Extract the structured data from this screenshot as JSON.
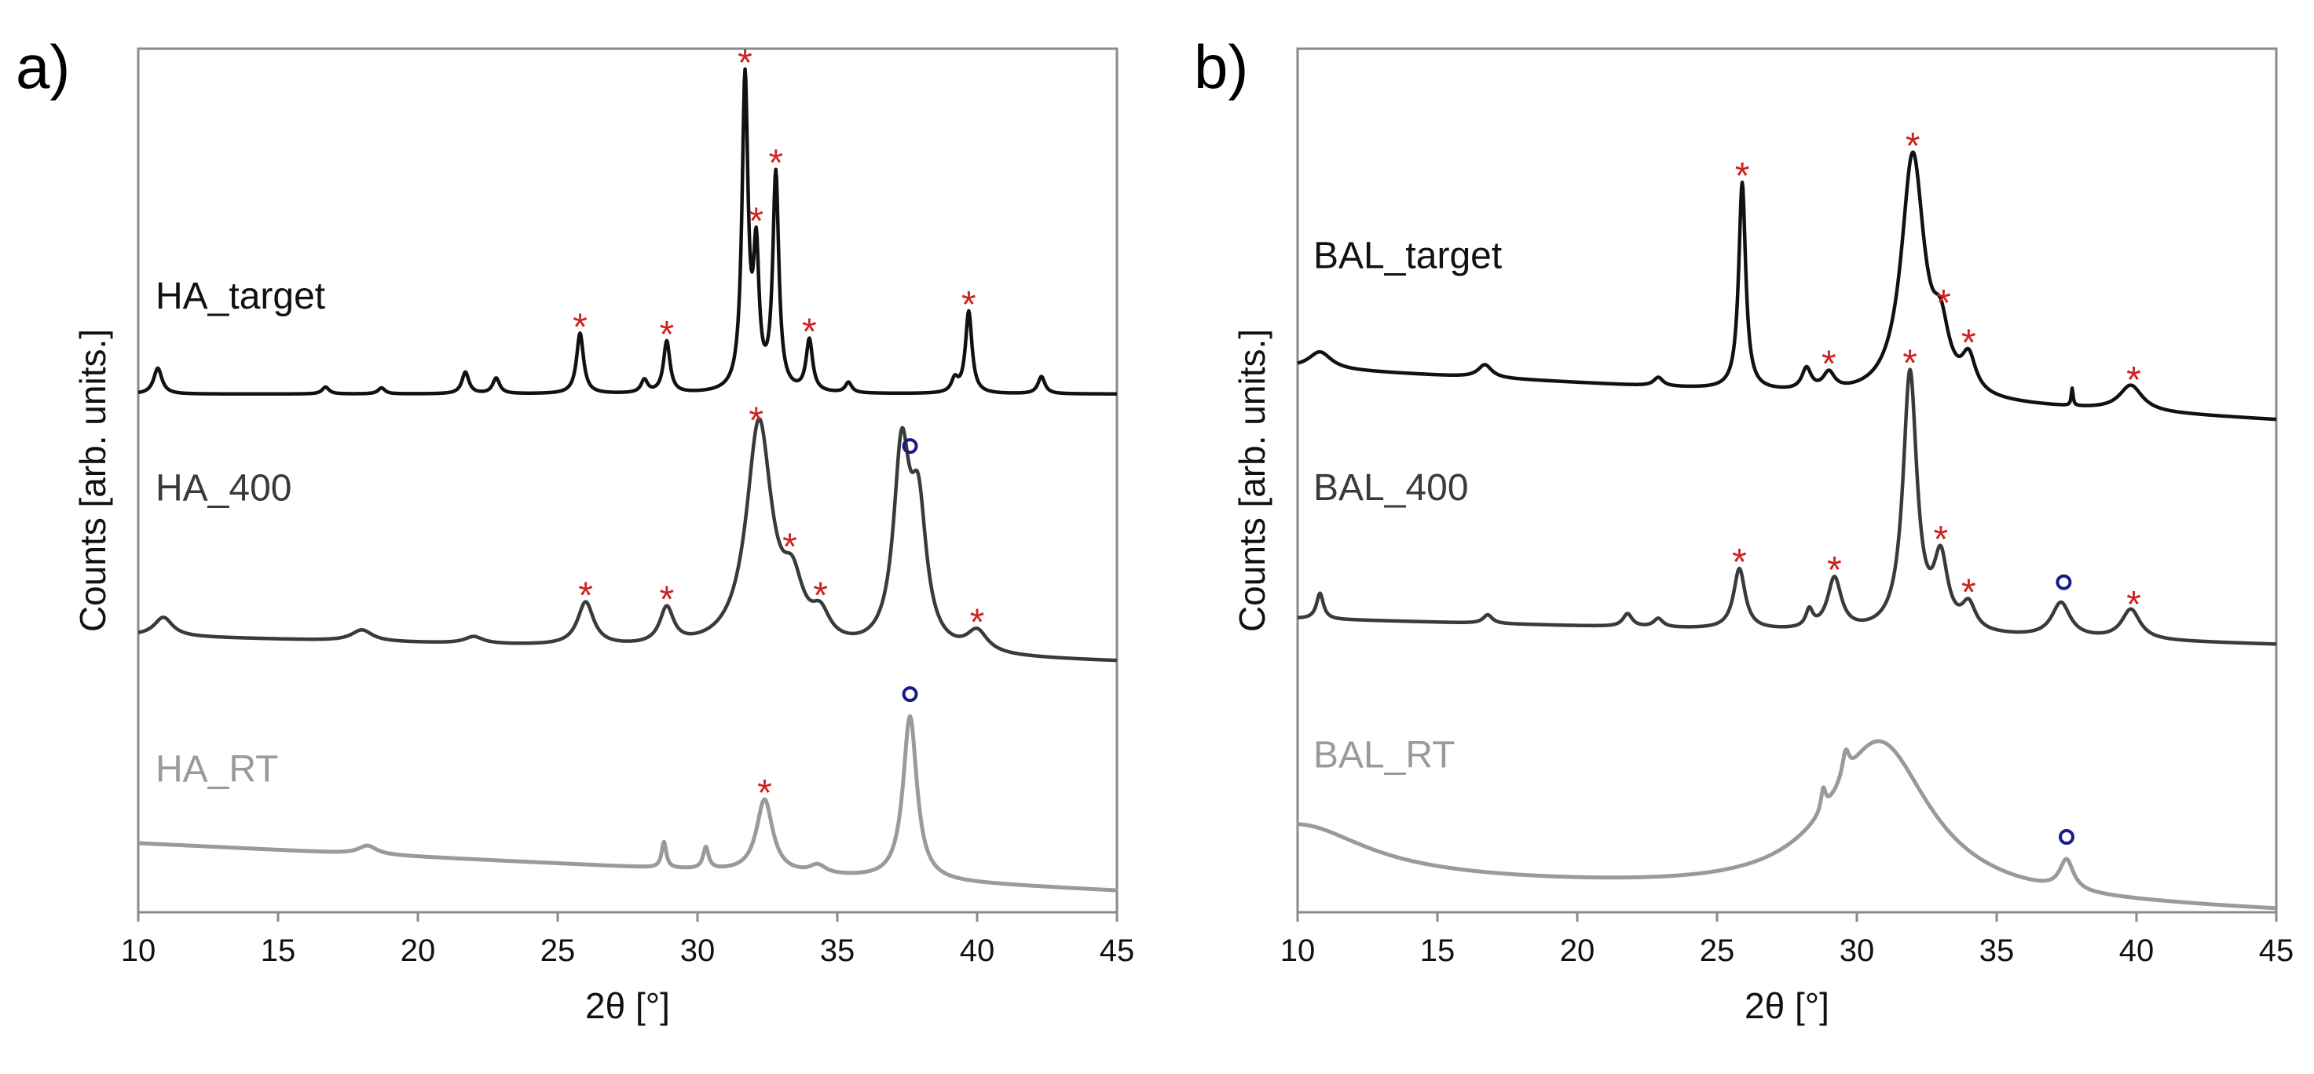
{
  "chart_data": [
    {
      "type": "line",
      "panel_label": "a)",
      "xlabel": "2θ [°]",
      "ylabel": "Counts [arb. units.]",
      "xlim": [
        10,
        45
      ],
      "xticks": [
        10,
        15,
        20,
        25,
        30,
        35,
        40,
        45
      ],
      "y_ticks_shown": false,
      "series": [
        {
          "name": "HA_target",
          "label": "HA_target",
          "color": "#111111",
          "offset": 0.6,
          "baseline_slope": 0.0,
          "peaks": [
            [
              10.7,
              0.03,
              0.18
            ],
            [
              16.7,
              0.008,
              0.15
            ],
            [
              18.7,
              0.007,
              0.15
            ],
            [
              21.7,
              0.025,
              0.15
            ],
            [
              22.8,
              0.018,
              0.15
            ],
            [
              25.8,
              0.07,
              0.15
            ],
            [
              28.1,
              0.015,
              0.14
            ],
            [
              28.9,
              0.06,
              0.14
            ],
            [
              31.7,
              0.36,
              0.13
            ],
            [
              32.1,
              0.15,
              0.12
            ],
            [
              32.8,
              0.25,
              0.13
            ],
            [
              34.0,
              0.06,
              0.14
            ],
            [
              35.4,
              0.012,
              0.14
            ],
            [
              39.2,
              0.015,
              0.14
            ],
            [
              39.7,
              0.095,
              0.14
            ],
            [
              42.3,
              0.02,
              0.15
            ]
          ],
          "star_markers": [
            {
              "x": 31.7,
              "symbol": "*"
            },
            {
              "x": 32.1,
              "symbol": "*"
            },
            {
              "x": 32.8,
              "symbol": "*"
            },
            {
              "x": 25.8,
              "symbol": "*"
            },
            {
              "x": 28.9,
              "symbol": "*"
            },
            {
              "x": 34.0,
              "symbol": "*"
            },
            {
              "x": 39.7,
              "symbol": "*"
            }
          ],
          "circle_markers": []
        },
        {
          "name": "HA_400",
          "label": "HA_400",
          "color": "#3a3a3a",
          "offset": 0.32,
          "baseline_slope": -0.03,
          "peaks": [
            [
              10.9,
              0.022,
              0.4
            ],
            [
              18.0,
              0.013,
              0.45
            ],
            [
              22.0,
              0.008,
              0.4
            ],
            [
              26.0,
              0.05,
              0.35
            ],
            [
              28.9,
              0.042,
              0.3
            ],
            [
              32.2,
              0.26,
              0.55
            ],
            [
              33.4,
              0.06,
              0.45
            ],
            [
              34.4,
              0.03,
              0.4
            ],
            [
              37.3,
              0.22,
              0.35
            ],
            [
              37.9,
              0.15,
              0.35
            ],
            [
              40.0,
              0.025,
              0.45
            ]
          ],
          "star_markers": [
            {
              "x": 32.1,
              "symbol": "*"
            },
            {
              "x": 26.0,
              "symbol": "*"
            },
            {
              "x": 28.9,
              "symbol": "*"
            },
            {
              "x": 33.3,
              "symbol": "*"
            },
            {
              "x": 34.4,
              "symbol": "*"
            },
            {
              "x": 40.0,
              "symbol": "*"
            }
          ],
          "circle_markers": [
            {
              "x": 37.6,
              "symbol": "o"
            }
          ]
        },
        {
          "name": "HA_RT",
          "label": "HA_RT",
          "color": "#9a9a9a",
          "offset": 0.08,
          "baseline_slope": -0.055,
          "peaks": [
            [
              18.2,
              0.01,
              0.4
            ],
            [
              28.8,
              0.03,
              0.1
            ],
            [
              30.3,
              0.025,
              0.12
            ],
            [
              32.4,
              0.085,
              0.35
            ],
            [
              34.3,
              0.01,
              0.35
            ],
            [
              37.6,
              0.19,
              0.3
            ]
          ],
          "star_markers": [
            {
              "x": 32.4,
              "symbol": "*"
            }
          ],
          "circle_markers": [
            {
              "x": 37.6,
              "symbol": "o"
            }
          ]
        }
      ]
    },
    {
      "type": "line",
      "panel_label": "b)",
      "xlabel": "2θ [°]",
      "ylabel": "Counts [arb. units.]",
      "xlim": [
        10,
        45
      ],
      "xticks": [
        10,
        15,
        20,
        25,
        30,
        35,
        40,
        45
      ],
      "y_ticks_shown": false,
      "series": [
        {
          "name": "BAL_target",
          "label": "BAL_target",
          "color": "#111111",
          "offset": 0.63,
          "baseline_slope": -0.06,
          "peaks": [
            [
              10.8,
              0.02,
              0.5
            ],
            [
              16.7,
              0.015,
              0.3
            ],
            [
              22.9,
              0.01,
              0.2
            ],
            [
              25.9,
              0.24,
              0.15
            ],
            [
              28.2,
              0.025,
              0.2
            ],
            [
              29.0,
              0.02,
              0.25
            ],
            [
              32.0,
              0.28,
              0.5
            ],
            [
              33.0,
              0.06,
              0.35
            ],
            [
              34.0,
              0.04,
              0.3
            ],
            [
              37.7,
              0.02,
              0.04
            ],
            [
              39.8,
              0.03,
              0.5
            ]
          ],
          "star_markers": [
            {
              "x": 25.9,
              "symbol": "*"
            },
            {
              "x": 32.0,
              "symbol": "*"
            },
            {
              "x": 29.0,
              "symbol": "*"
            },
            {
              "x": 33.1,
              "symbol": "*"
            },
            {
              "x": 34.0,
              "symbol": "*"
            },
            {
              "x": 39.9,
              "symbol": "*"
            }
          ],
          "circle_markers": []
        },
        {
          "name": "BAL_400",
          "label": "BAL_400",
          "color": "#3a3a3a",
          "offset": 0.34,
          "baseline_slope": -0.03,
          "peaks": [
            [
              10.8,
              0.03,
              0.15
            ],
            [
              16.8,
              0.01,
              0.2
            ],
            [
              21.8,
              0.015,
              0.2
            ],
            [
              22.9,
              0.01,
              0.2
            ],
            [
              25.8,
              0.07,
              0.25
            ],
            [
              28.3,
              0.02,
              0.15
            ],
            [
              29.2,
              0.06,
              0.3
            ],
            [
              31.9,
              0.3,
              0.3
            ],
            [
              33.0,
              0.08,
              0.3
            ],
            [
              34.0,
              0.03,
              0.3
            ],
            [
              37.3,
              0.04,
              0.4
            ],
            [
              39.8,
              0.035,
              0.4
            ]
          ],
          "star_markers": [
            {
              "x": 31.9,
              "symbol": "*"
            },
            {
              "x": 25.8,
              "symbol": "*"
            },
            {
              "x": 29.2,
              "symbol": "*"
            },
            {
              "x": 33.0,
              "symbol": "*"
            },
            {
              "x": 34.0,
              "symbol": "*"
            },
            {
              "x": 39.9,
              "symbol": "*"
            }
          ],
          "circle_markers": [
            {
              "x": 37.4,
              "symbol": "o"
            }
          ]
        },
        {
          "name": "BAL_RT",
          "label": "BAL_RT",
          "color": "#9a9a9a",
          "offset": 0.04,
          "baseline_slope": -0.04,
          "peaks": [
            [
              10.0,
              0.06,
              3.0
            ],
            [
              28.8,
              0.025,
              0.1
            ],
            [
              29.6,
              0.03,
              0.15
            ],
            [
              30.8,
              0.18,
              2.2
            ],
            [
              37.5,
              0.035,
              0.3
            ]
          ],
          "star_markers": [],
          "circle_markers": [
            {
              "x": 37.5,
              "symbol": "o"
            }
          ]
        }
      ]
    }
  ]
}
